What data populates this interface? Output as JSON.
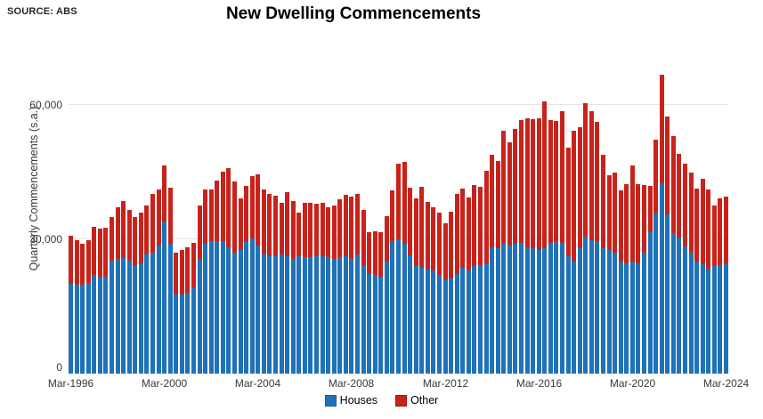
{
  "source_label": "SOURCE: ABS",
  "title": "New Dwelling Commencements",
  "y_axis_title": "Quarterly Commencements (s.a.)",
  "colors": {
    "houses": "#1f72b8",
    "houses_border": "#195e99",
    "other": "#c8231b",
    "other_border": "#a31812",
    "gridline": "#e4e4e4",
    "axis_text": "#3a3a3a"
  },
  "legend": [
    {
      "label": "Houses",
      "color": "#1f72b8"
    },
    {
      "label": "Other",
      "color": "#c8231b"
    }
  ],
  "chart_data": {
    "type": "bar",
    "stacked": true,
    "title": "New Dwelling Commencements",
    "xlabel": "",
    "ylabel": "Quarterly Commencements (s.a.)",
    "ylim": [
      0,
      67400
    ],
    "grid": true,
    "legend_position": "bottom",
    "y_ticks": [
      0,
      30000,
      60000
    ],
    "y_tick_labels": [
      "0",
      "30,000",
      "60,000"
    ],
    "x_tick_indices": [
      0,
      16,
      32,
      48,
      64,
      80,
      96,
      112
    ],
    "x_tick_labels": [
      "Mar-1996",
      "Mar-2000",
      "Mar-2004",
      "Mar-2008",
      "Mar-2012",
      "Mar-2016",
      "Mar-2020",
      "Mar-2024"
    ],
    "categories": [
      "Mar-1996",
      "Jun-1996",
      "Sep-1996",
      "Dec-1996",
      "Mar-1997",
      "Jun-1997",
      "Sep-1997",
      "Dec-1997",
      "Mar-1998",
      "Jun-1998",
      "Sep-1998",
      "Dec-1998",
      "Mar-1999",
      "Jun-1999",
      "Sep-1999",
      "Dec-1999",
      "Mar-2000",
      "Jun-2000",
      "Sep-2000",
      "Dec-2000",
      "Mar-2001",
      "Jun-2001",
      "Sep-2001",
      "Dec-2001",
      "Mar-2002",
      "Jun-2002",
      "Sep-2002",
      "Dec-2002",
      "Mar-2003",
      "Jun-2003",
      "Sep-2003",
      "Dec-2003",
      "Mar-2004",
      "Jun-2004",
      "Sep-2004",
      "Dec-2004",
      "Mar-2005",
      "Jun-2005",
      "Sep-2005",
      "Dec-2005",
      "Mar-2006",
      "Jun-2006",
      "Sep-2006",
      "Dec-2006",
      "Mar-2007",
      "Jun-2007",
      "Sep-2007",
      "Dec-2007",
      "Mar-2008",
      "Jun-2008",
      "Sep-2008",
      "Dec-2008",
      "Mar-2009",
      "Jun-2009",
      "Sep-2009",
      "Dec-2009",
      "Mar-2010",
      "Jun-2010",
      "Sep-2010",
      "Dec-2010",
      "Mar-2011",
      "Jun-2011",
      "Sep-2011",
      "Dec-2011",
      "Mar-2012",
      "Jun-2012",
      "Sep-2012",
      "Dec-2012",
      "Mar-2013",
      "Jun-2013",
      "Sep-2013",
      "Dec-2013",
      "Mar-2014",
      "Jun-2014",
      "Sep-2014",
      "Dec-2014",
      "Mar-2015",
      "Jun-2015",
      "Sep-2015",
      "Dec-2015",
      "Mar-2016",
      "Jun-2016",
      "Sep-2016",
      "Dec-2016",
      "Mar-2017",
      "Jun-2017",
      "Sep-2017",
      "Dec-2017",
      "Mar-2018",
      "Jun-2018",
      "Sep-2018",
      "Dec-2018",
      "Mar-2019",
      "Jun-2019",
      "Sep-2019",
      "Dec-2019",
      "Mar-2020",
      "Jun-2020",
      "Sep-2020",
      "Dec-2020",
      "Mar-2021",
      "Jun-2021",
      "Sep-2021",
      "Dec-2021",
      "Mar-2022",
      "Jun-2022",
      "Sep-2022",
      "Dec-2022",
      "Mar-2023",
      "Jun-2023",
      "Sep-2023",
      "Dec-2023",
      "Mar-2024"
    ],
    "series": [
      {
        "name": "Houses",
        "values": [
          20100,
          19800,
          19800,
          20300,
          22000,
          21700,
          21700,
          25300,
          25600,
          25800,
          25300,
          24300,
          24600,
          26600,
          27000,
          28600,
          34000,
          29000,
          17700,
          17700,
          18100,
          19300,
          25700,
          29000,
          29600,
          29600,
          29600,
          28300,
          27000,
          27600,
          29600,
          30300,
          28600,
          26600,
          26300,
          26300,
          26600,
          26300,
          25600,
          26300,
          26000,
          26000,
          26300,
          26300,
          26000,
          25600,
          26000,
          26300,
          25600,
          26600,
          24300,
          22300,
          22000,
          21700,
          25000,
          29600,
          30000,
          29000,
          26500,
          24000,
          23600,
          23400,
          23000,
          22000,
          21000,
          21300,
          22300,
          23600,
          23000,
          24000,
          24300,
          24600,
          28300,
          28000,
          29000,
          28700,
          29000,
          29300,
          28300,
          28000,
          27600,
          28000,
          29300,
          29600,
          29300,
          26300,
          25000,
          28000,
          30600,
          29900,
          29600,
          28000,
          27600,
          27000,
          25000,
          24600,
          25000,
          24600,
          27000,
          31600,
          35900,
          42500,
          35500,
          31500,
          30500,
          28500,
          27000,
          25000,
          24500,
          23500,
          24000,
          24300,
          24600
        ]
      },
      {
        "name": "Other",
        "values": [
          10700,
          10000,
          9200,
          9500,
          10800,
          10600,
          10800,
          9700,
          11600,
          12700,
          11200,
          10700,
          11400,
          11000,
          13200,
          12500,
          12600,
          12600,
          9300,
          10000,
          10200,
          10000,
          11900,
          12200,
          11600,
          13600,
          15600,
          17600,
          15900,
          11600,
          12300,
          13800,
          15900,
          14600,
          13900,
          13400,
          11600,
          14200,
          12900,
          9600,
          12100,
          12100,
          11600,
          11900,
          11200,
          12000,
          12900,
          13600,
          13900,
          13600,
          12300,
          9300,
          9900,
          9900,
          10200,
          11300,
          16900,
          18300,
          15000,
          15200,
          18100,
          15000,
          14200,
          13900,
          12600,
          14900,
          17900,
          17800,
          16400,
          18100,
          17400,
          20800,
          20600,
          19500,
          25300,
          23000,
          25600,
          27300,
          28800,
          28800,
          29500,
          32900,
          27300,
          26800,
          29400,
          24100,
          29300,
          27100,
          29900,
          28800,
          26600,
          20800,
          16700,
          18000,
          16000,
          17700,
          21600,
          17700,
          15200,
          10400,
          16300,
          24200,
          21900,
          21600,
          18600,
          18500,
          18000,
          16300,
          19000,
          17700,
          13600,
          14900,
          14900
        ]
      }
    ]
  }
}
